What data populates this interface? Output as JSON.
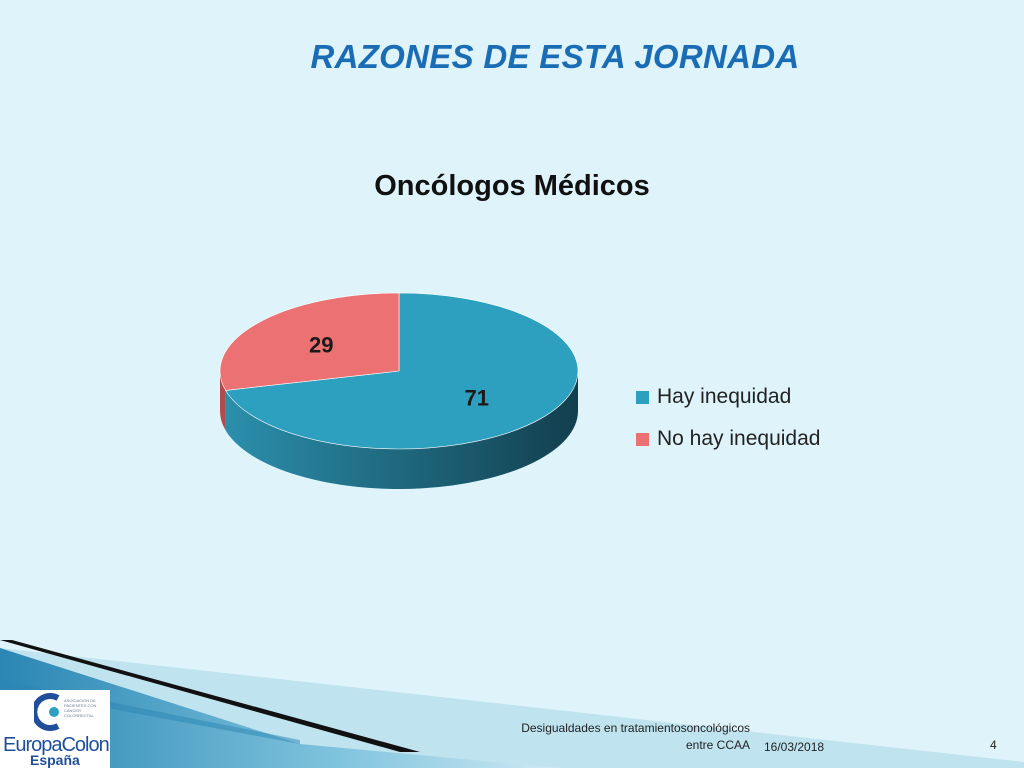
{
  "slide": {
    "title": "RAZONES DE ESTA JORNADA",
    "footer_text": "Desigualdades en tratamientosoncológicos entre CCAA",
    "date": "16/03/2018",
    "page_number": "4"
  },
  "logo": {
    "tagline": "ASOCIACIÓN DE PACIENTES CON CÁNCER COLORRECTAL",
    "name": "EuropaColon",
    "sub": "España"
  },
  "colors": {
    "background": "#dff4fa",
    "title": "#1a6db5",
    "hay": "#2ea0bf",
    "no_hay": "#ec7172"
  },
  "chart_data": {
    "type": "pie",
    "title": "Oncólogos Médicos",
    "style": "3d",
    "legend_position": "right",
    "categories": [
      "Hay inequidad",
      "No hay inequidad"
    ],
    "values": [
      71,
      29
    ],
    "data_labels": [
      "71",
      "29"
    ]
  }
}
